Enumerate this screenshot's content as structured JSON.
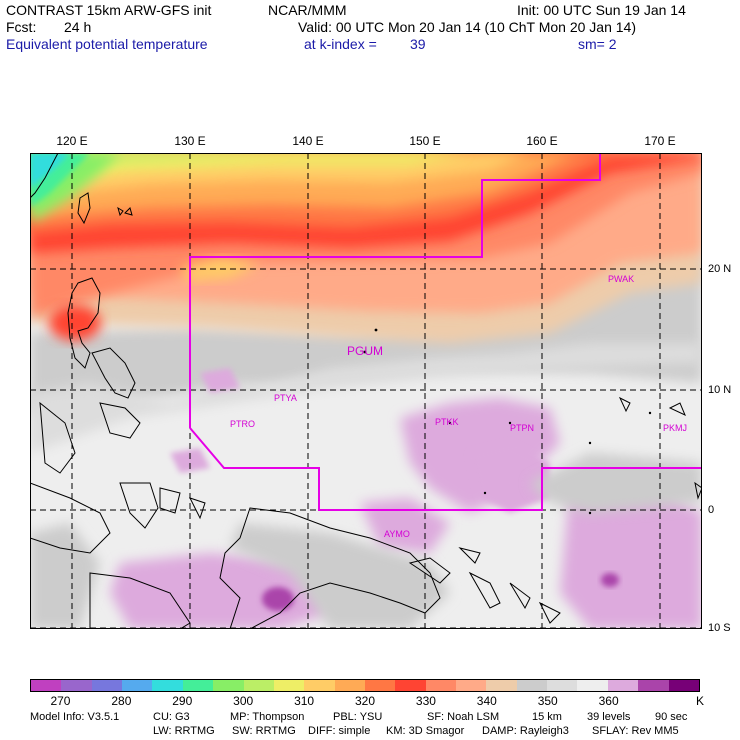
{
  "header": {
    "model_title": "CONTRAST 15km ARW-GFS init",
    "org": "NCAR/MMM",
    "init": "Init: 00 UTC Sun 19 Jan 14",
    "fcst_label": "Fcst:",
    "fcst_value": "24 h",
    "valid": "Valid: 00 UTC Mon 20 Jan 14 (10 ChT Mon 20 Jan 14)",
    "field": "Equivalent potential temperature",
    "level": "at k-index =",
    "k_index": "39",
    "smoothing": "sm= 2"
  },
  "map": {
    "lon_labels": [
      "120 E",
      "130 E",
      "140 E",
      "150 E",
      "160 E",
      "170 E"
    ],
    "lat_labels": [
      "20 N",
      "10 N",
      "0",
      "10 S"
    ],
    "stations": [
      {
        "id": "PWAK",
        "size": "small"
      },
      {
        "id": "PGUM",
        "size": "large"
      },
      {
        "id": "PTYA",
        "size": "small"
      },
      {
        "id": "PTRO",
        "size": "small"
      },
      {
        "id": "PTKK",
        "size": "small"
      },
      {
        "id": "PTPN",
        "size": "small"
      },
      {
        "id": "PKMJ",
        "size": "small"
      },
      {
        "id": "AYMO",
        "size": "small"
      }
    ],
    "boundary_color": "#e600e6",
    "coast_color": "#000000",
    "grid_color": "#000000"
  },
  "colorbar": {
    "colors": [
      "#c040c0",
      "#9966cc",
      "#7777dd",
      "#55aaee",
      "#33dddd",
      "#44ee99",
      "#88ee66",
      "#bbee66",
      "#eeee66",
      "#ffcc66",
      "#ffaa55",
      "#ff7744",
      "#ff4433",
      "#ff8866",
      "#ffaa88",
      "#eeccaa",
      "#cccccc",
      "#dddddd",
      "#eeeeee",
      "#ddaadd",
      "#aa44aa",
      "#770077"
    ],
    "labels": [
      "270",
      "280",
      "290",
      "300",
      "310",
      "320",
      "330",
      "340",
      "350",
      "360",
      "K"
    ]
  },
  "footer": {
    "line1": [
      "Model Info: V3.5.1",
      "CU: G3",
      "MP: Thompson",
      "PBL: YSU",
      "SF: Noah LSM",
      "15 km",
      "39 levels",
      "90 sec"
    ],
    "line2": [
      "LW: RRTMG",
      "SW: RRTMG",
      "DIFF: simple",
      "KM: 3D Smagor",
      "DAMP: Rayleigh3",
      "SFLAY: Rev MM5"
    ]
  }
}
